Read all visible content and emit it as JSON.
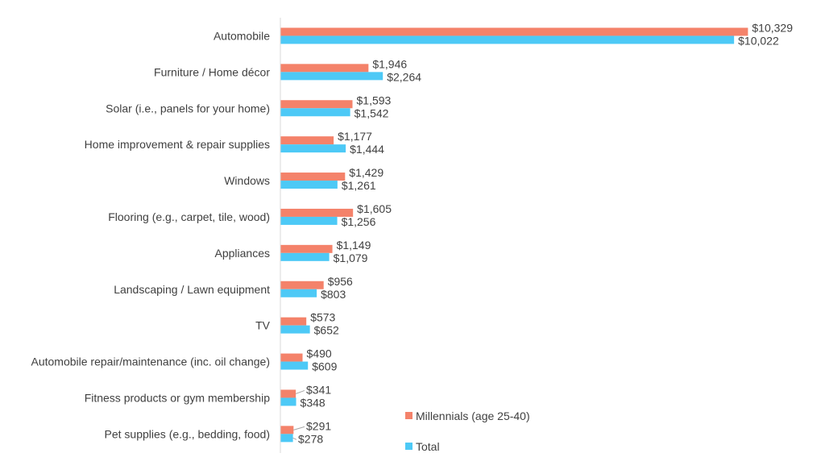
{
  "chart_data": {
    "type": "bar",
    "orientation": "horizontal",
    "categories": [
      "Automobile",
      "Furniture / Home décor",
      "Solar (i.e., panels for your home)",
      "Home improvement & repair supplies",
      "Windows",
      "Flooring (e.g., carpet, tile, wood)",
      "Appliances",
      "Landscaping / Lawn equipment",
      "TV",
      "Automobile repair/maintenance (inc. oil change)",
      "Fitness products or gym membership",
      "Pet supplies (e.g., bedding, food)"
    ],
    "series": [
      {
        "name": "Millennials (age 25-40)",
        "color": "#F4826A",
        "values": [
          10329,
          1946,
          1593,
          1177,
          1429,
          1605,
          1149,
          956,
          573,
          490,
          341,
          291
        ],
        "labels": [
          "$10,329",
          "$1,946",
          "$1,593",
          "$1,177",
          "$1,429",
          "$1,605",
          "$1,149",
          "$956",
          "$573",
          "$490",
          "$341",
          "$291"
        ]
      },
      {
        "name": "Total",
        "color": "#4DC9F6",
        "values": [
          10022,
          2264,
          1542,
          1444,
          1261,
          1256,
          1079,
          803,
          652,
          609,
          348,
          278
        ],
        "labels": [
          "$10,022",
          "$2,264",
          "$1,542",
          "$1,444",
          "$1,261",
          "$1,256",
          "$1,079",
          "$803",
          "$652",
          "$609",
          "$348",
          "$278"
        ]
      }
    ],
    "xlim": [
      0,
      10500
    ],
    "grid": false,
    "legend_position": "bottom-right",
    "axis_color": "#D9D9D9",
    "leader_color": "#A6A6A6"
  }
}
